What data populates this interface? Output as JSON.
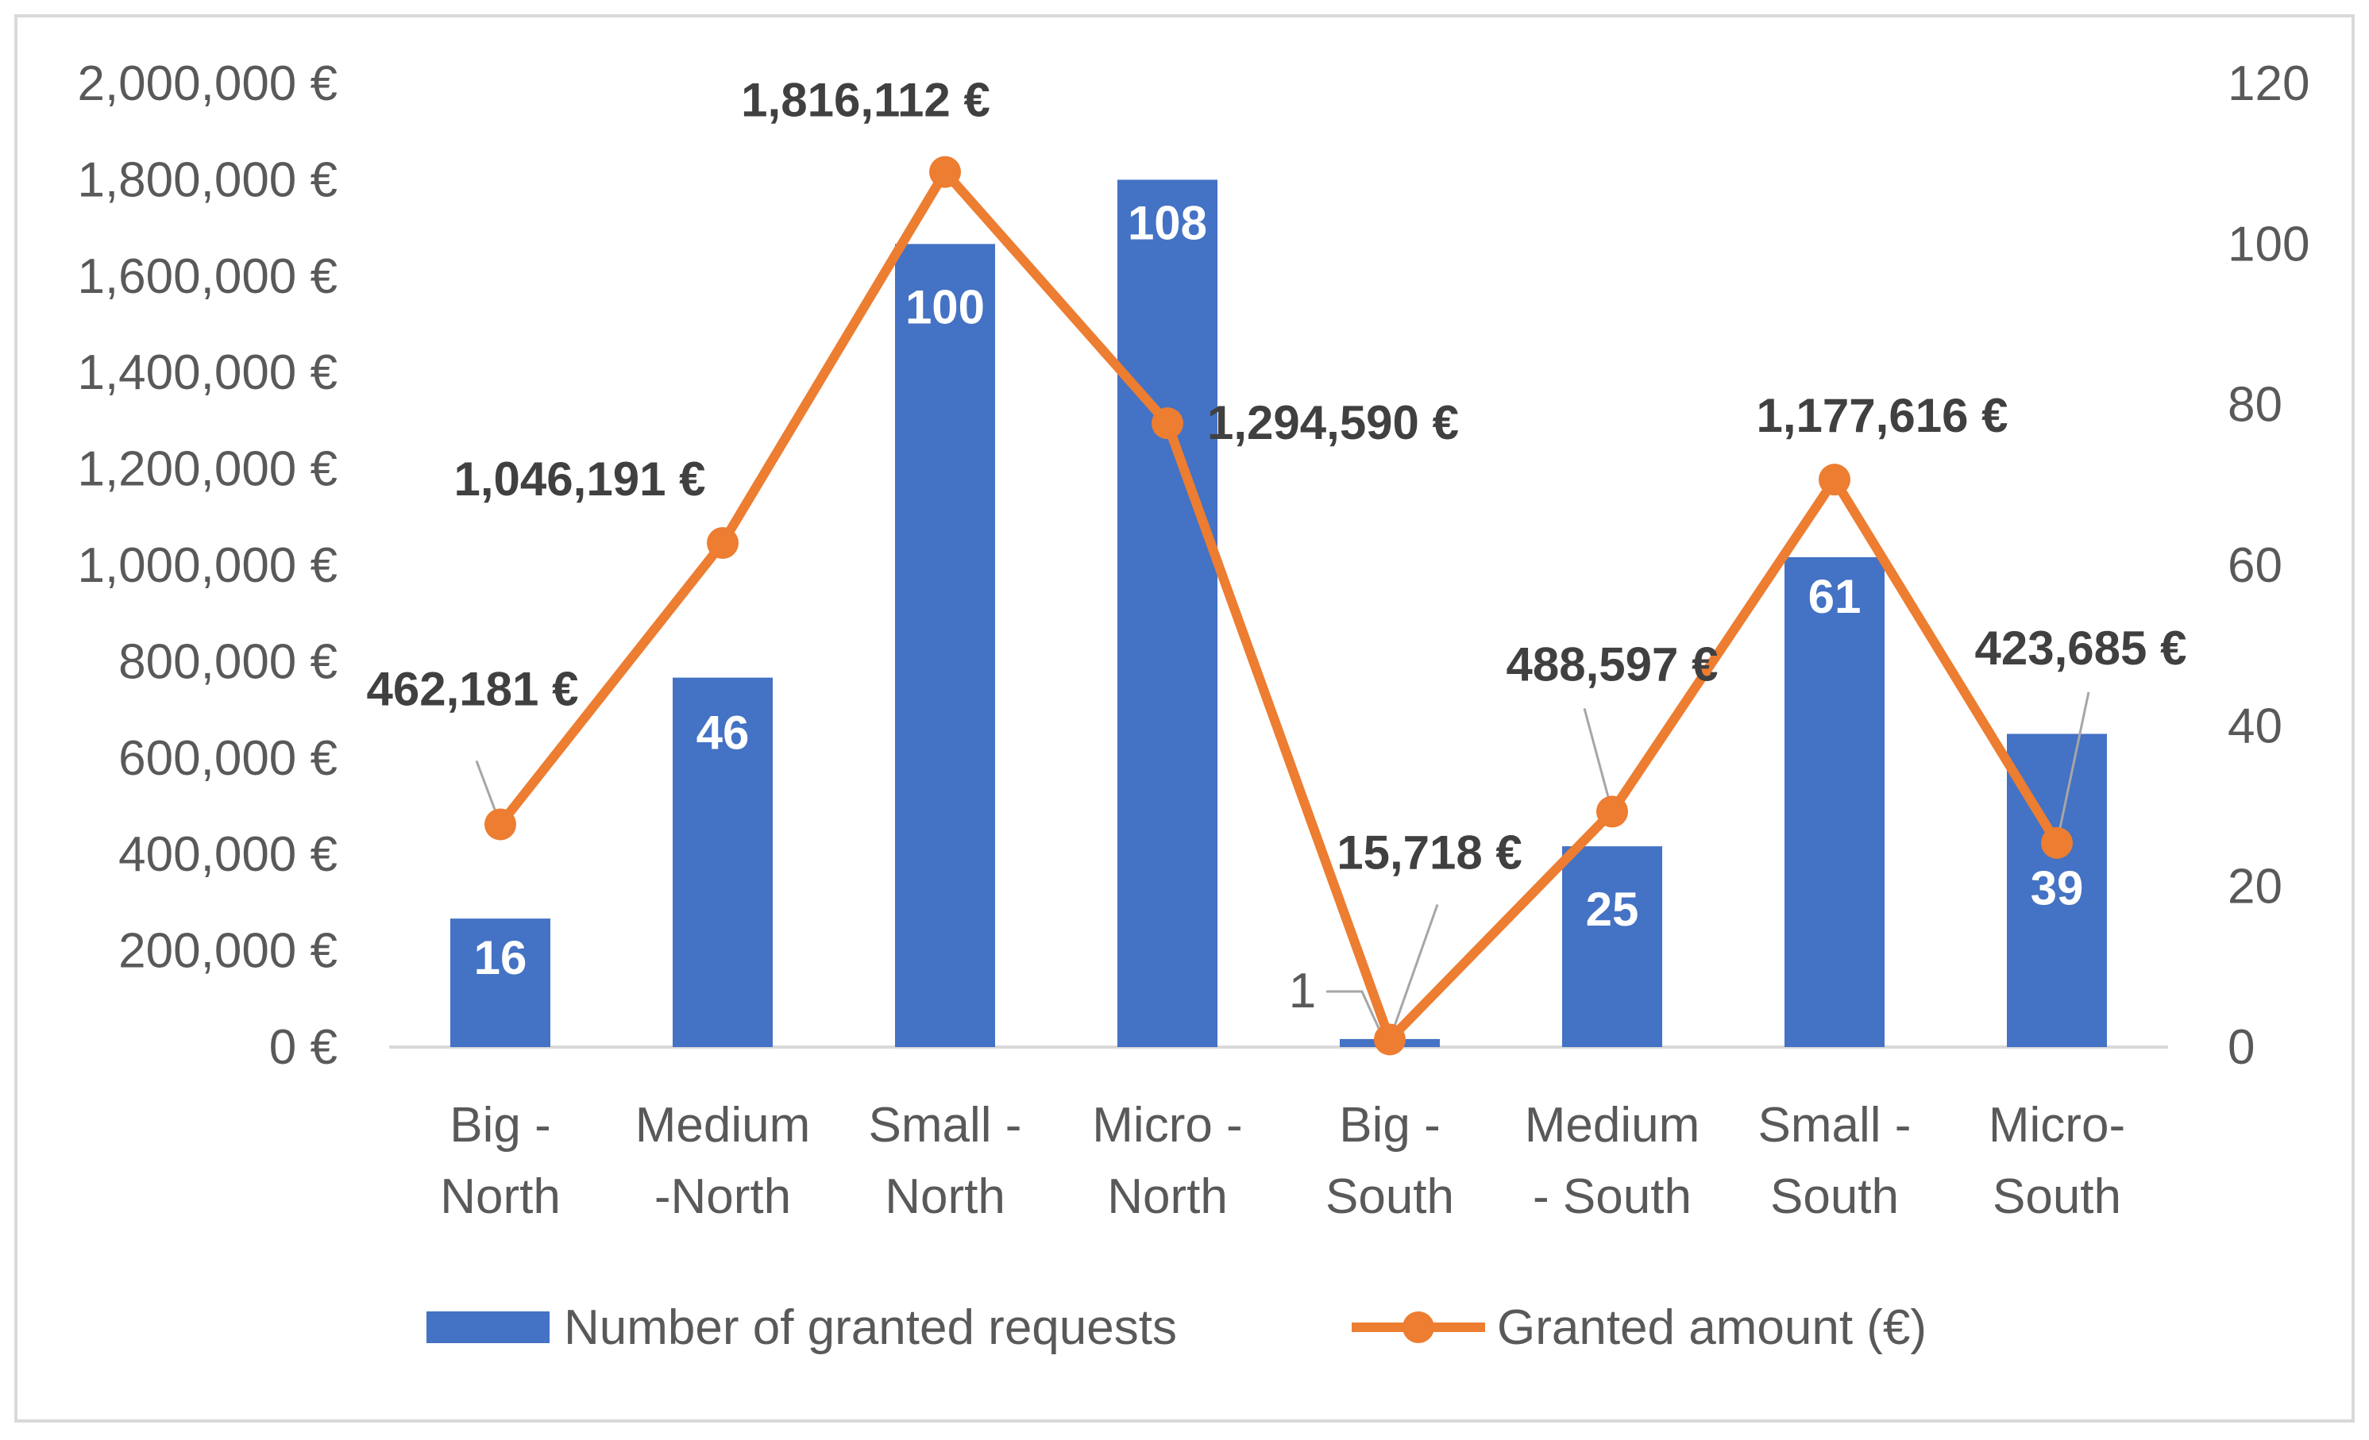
{
  "chart_data": {
    "type": "bar",
    "title": "",
    "categories": [
      [
        "Big -",
        "North"
      ],
      [
        "Medium",
        "-North"
      ],
      [
        "Small -",
        "North"
      ],
      [
        "Micro -",
        "North"
      ],
      [
        "Big -",
        "South"
      ],
      [
        "Medium",
        "- South"
      ],
      [
        "Small -",
        "South"
      ],
      [
        "Micro-",
        "South"
      ]
    ],
    "series": [
      {
        "name": "Number of granted requests",
        "type": "bar",
        "axis": "right",
        "color": "#4472c4",
        "values": [
          16,
          46,
          100,
          108,
          1,
          25,
          61,
          39
        ],
        "labels": [
          "16",
          "46",
          "100",
          "108",
          "1",
          "25",
          "61",
          "39"
        ]
      },
      {
        "name": "Granted amount (€)",
        "type": "line",
        "axis": "left",
        "color": "#ed7d31",
        "values": [
          462181,
          1046191,
          1816112,
          1294590,
          15718,
          488597,
          1177616,
          423685
        ],
        "labels": [
          "462,181 €",
          "1,046,191 €",
          "1,816,112 €",
          "1,294,590 €",
          "15,718 €",
          "488,597 €",
          "1,177,616 €",
          "423,685 €"
        ]
      }
    ],
    "left_axis": {
      "ylim": [
        0,
        2000000
      ],
      "ticks": [
        "0 €",
        "200,000 €",
        "400,000 €",
        "600,000 €",
        "800,000 €",
        "1,000,000 €",
        "1,200,000 €",
        "1,400,000 €",
        "1,600,000 €",
        "1,800,000 €",
        "2,000,000 €"
      ]
    },
    "right_axis": {
      "ylim": [
        0,
        120
      ],
      "ticks": [
        "0",
        "20",
        "40",
        "60",
        "80",
        "100",
        "120"
      ]
    },
    "xlabel": "",
    "ylabel": "",
    "grid": false,
    "legend": {
      "placement": "bottom",
      "items": [
        "Number of granted requests",
        "Granted amount (€)"
      ]
    }
  }
}
